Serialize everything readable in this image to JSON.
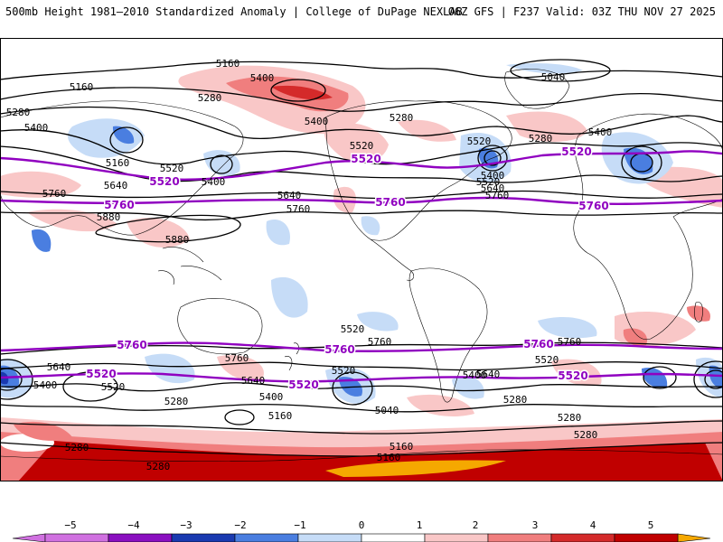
{
  "header": {
    "left_title": "500mb Height 1981–2010 Standardized Anomaly | College of DuPage NEXLAB",
    "right_title": "06Z GFS | F237 Valid: 03Z THU NOV 27 2025"
  },
  "colors": {
    "anomaly": {
      "-5": "#d070e0",
      "-4": "#8a10c0",
      "-3": "#1a3ab0",
      "-2": "#4a7ee0",
      "-1": "#c6dcf7",
      "0": "#ffffff",
      "1": "#f9c7c7",
      "2": "#f07e7e",
      "3": "#d42a2a",
      "4": "#c00000",
      "5": "#f5a800"
    },
    "contour": "#000000",
    "highlight_contour": "#9000c0",
    "coastline": "#000000"
  },
  "colorbar": {
    "ticks": [
      "−5",
      "−4",
      "−3",
      "−2",
      "−1",
      "0",
      "1",
      "2",
      "3",
      "4",
      "5"
    ]
  },
  "contour_labels": [
    "5160",
    "5400",
    "5040",
    "5160",
    "5280",
    "5280",
    "5400",
    "5280",
    "5520",
    "5400",
    "5520",
    "5280",
    "5400",
    "5160",
    "5520",
    "5640",
    "5400",
    "5640",
    "5760",
    "5400",
    "5520",
    "5640",
    "5760",
    "5760",
    "5880",
    "5880",
    "5640",
    "5520",
    "5400",
    "5760",
    "5640",
    "5760",
    "5520",
    "5400",
    "5280",
    "5160",
    "5040",
    "5280",
    "5160",
    "5280",
    "5280",
    "5280",
    "5280",
    "5160",
    "5520",
    "5400",
    "5640",
    "5520",
    "5760"
  ],
  "highlight_labels": [
    "5520",
    "5520",
    "5520",
    "5760",
    "5760",
    "5760",
    "5760",
    "5760",
    "5760",
    "5520",
    "5520",
    "5520"
  ]
}
